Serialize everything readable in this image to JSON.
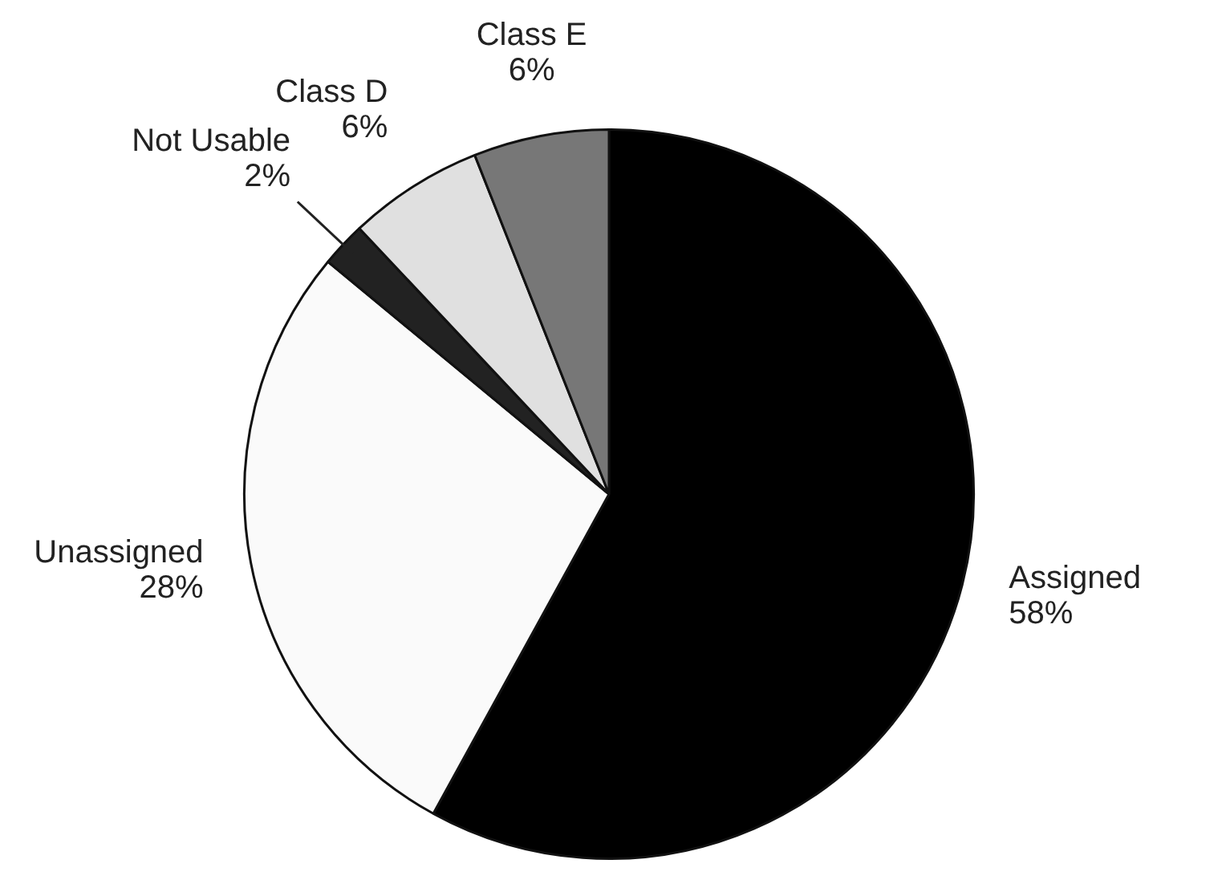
{
  "chart_data": {
    "type": "pie",
    "categories": [
      "Assigned",
      "Unassigned",
      "Not Usable",
      "Class D",
      "Class E"
    ],
    "values": [
      58,
      28,
      2,
      6,
      6
    ],
    "value_labels": [
      "58%",
      "28%",
      "2%",
      "6%",
      "6%"
    ],
    "colors": [
      "#000000",
      "#fafafa",
      "#222222",
      "#e0e0e0",
      "#777777"
    ]
  }
}
